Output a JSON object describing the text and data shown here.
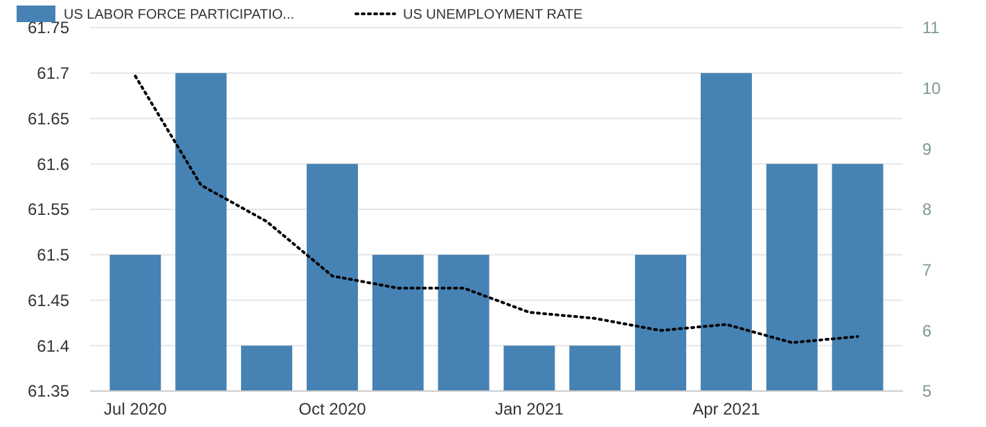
{
  "chart_data": {
    "type": "bar",
    "categories": [
      "Jul 2020",
      null,
      null,
      "Oct 2020",
      null,
      null,
      "Jan 2021",
      null,
      null,
      "Apr 2021",
      null,
      null
    ],
    "series": [
      {
        "name": "US LABOR FORCE PARTICIPATIO...",
        "color": "#4682b4",
        "values": [
          61.5,
          61.7,
          61.4,
          61.6,
          61.5,
          61.5,
          61.4,
          61.4,
          61.5,
          61.7,
          61.6,
          61.6
        ]
      },
      {
        "name": "US UNEMPLOYMENT RATE",
        "type": "line",
        "axis": "y2",
        "color": "#000000",
        "line_style": "dotted",
        "values": [
          10.2,
          8.4,
          7.8,
          6.9,
          6.7,
          6.7,
          6.3,
          6.2,
          6.0,
          6.1,
          5.8,
          5.9
        ]
      }
    ],
    "ylim": [
      61.35,
      61.75
    ],
    "yticks": [
      61.35,
      61.4,
      61.45,
      61.5,
      61.55,
      61.6,
      61.65,
      61.7,
      61.75
    ],
    "y2lim": [
      5,
      11
    ],
    "y2ticks": [
      5,
      6,
      7,
      8,
      9,
      10,
      11
    ],
    "grid": "y",
    "legend": "top left"
  }
}
